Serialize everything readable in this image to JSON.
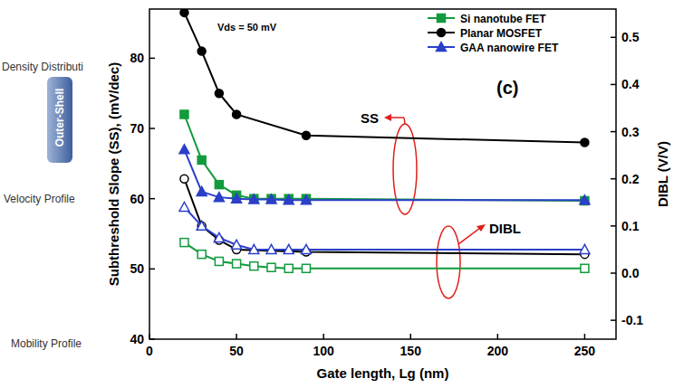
{
  "chart_data": {
    "type": "line",
    "x_label": "Gate length, Lg (nm)",
    "y_label": "Subthreshold Slope (SS), (mV/dec)",
    "y2_label": "DIBL (V/V)",
    "annotations": [
      "Density Distributi",
      "Velocity Profile",
      "Mobility Profile",
      "Outer-Shell",
      "Vds = 50 mV",
      "SS",
      "DIBL",
      "(c)"
    ],
    "xlim": [
      0,
      268
    ],
    "xticks": [
      0,
      50,
      100,
      150,
      200,
      250
    ],
    "ylim": [
      40,
      87
    ],
    "yticks": [
      40,
      50,
      60,
      70,
      80
    ],
    "y2lim": [
      -0.14,
      0.56
    ],
    "y2ticks": [
      -0.1,
      {
        "value": 0,
        "label": "0.0"
      },
      0.1,
      0.2,
      0.3,
      0.4,
      0.5
    ],
    "legend": "upper right",
    "series": [
      {
        "name": "Si nanotube FET",
        "color": "#129b3c",
        "marker": "square",
        "line_style": "solid",
        "x": [
          20,
          30,
          40,
          50,
          60,
          70,
          80,
          90,
          250
        ],
        "values": [
          72,
          65.5,
          62,
          60.5,
          60,
          60,
          60,
          60,
          59.7
        ]
      },
      {
        "name": "Planar MOSFET",
        "color": "#000000",
        "marker": "circle",
        "line_style": "solid",
        "x": [
          20,
          30,
          40,
          50,
          90,
          250
        ],
        "values": [
          86.5,
          81,
          75,
          72,
          69,
          68
        ]
      },
      {
        "name": "GAA nanowire FET",
        "color": "#2b3fc8",
        "marker": "triangle",
        "line_style": "solid",
        "x": [
          20,
          30,
          40,
          50,
          60,
          70,
          80,
          90,
          250
        ],
        "values": [
          67,
          61,
          60.2,
          60,
          59.9,
          59.9,
          59.8,
          59.8,
          59.8
        ]
      },
      {
        "name": "Si nanotube FET",
        "color": "#129b3c",
        "marker": "square-open",
        "line_style": "solid",
        "axis": "y2",
        "x": [
          20,
          30,
          40,
          50,
          60,
          70,
          80,
          90,
          250
        ],
        "values": [
          0.065,
          0.04,
          0.025,
          0.02,
          0.015,
          0.012,
          0.01,
          0.01,
          0.01
        ]
      },
      {
        "name": "Planar MOSFET",
        "color": "#000000",
        "marker": "circle-open",
        "line_style": "solid",
        "axis": "y2",
        "x": [
          20,
          30,
          40,
          50,
          90,
          250
        ],
        "values": [
          0.2,
          0.1,
          0.07,
          0.05,
          0.045,
          0.04
        ]
      },
      {
        "name": "GAA nanowire FET",
        "color": "#2b3fc8",
        "marker": "triangle-open",
        "line_style": "solid",
        "axis": "y2",
        "x": [
          20,
          30,
          40,
          50,
          60,
          70,
          80,
          90,
          250
        ],
        "values": [
          0.14,
          0.1,
          0.075,
          0.06,
          0.05,
          0.05,
          0.05,
          0.05,
          0.05
        ]
      }
    ]
  }
}
